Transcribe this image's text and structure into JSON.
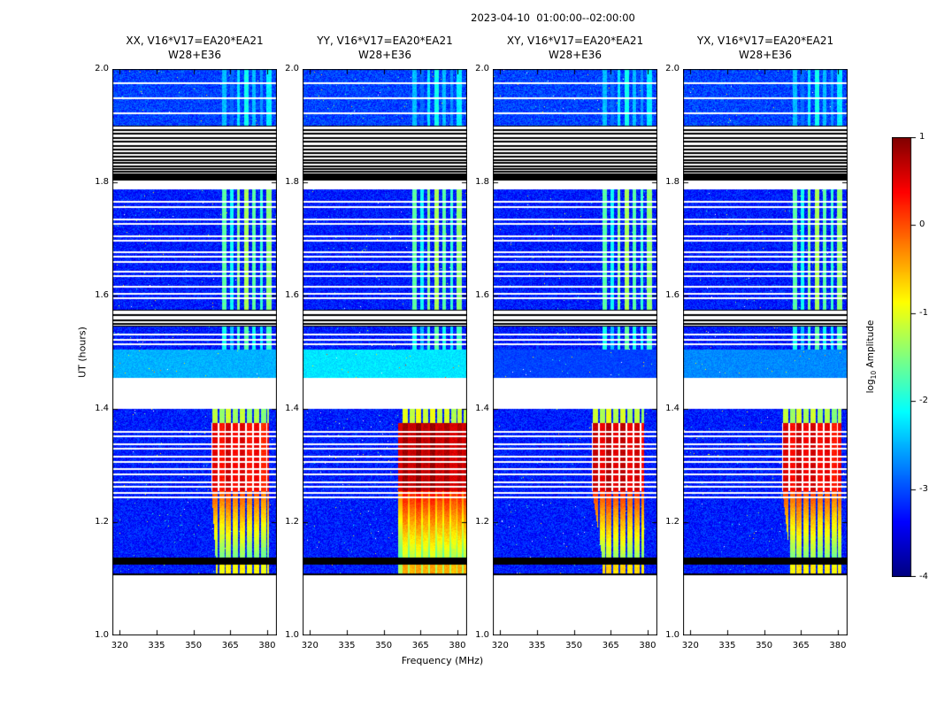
{
  "chart_data": {
    "type": "heatmap",
    "title": "2023-04-10  01:00:00--02:00:00",
    "xlabel": "Frequency (MHz)",
    "ylabel": "UT (hours)",
    "x_range": [
      317,
      384
    ],
    "x_ticks": [
      "320",
      "335",
      "350",
      "365",
      "380"
    ],
    "y_range": [
      1.0,
      2.0
    ],
    "y_ticks": [
      "2.0",
      "1.8",
      "1.6",
      "1.4",
      "1.2",
      "1.0"
    ],
    "colorbar": {
      "label": "log10 Amplitude",
      "label_parts": [
        "log",
        "10",
        " Amplitude"
      ],
      "vmin": -4,
      "vmax": 1,
      "ticks": [
        "1",
        "0",
        "-1",
        "-2",
        "-3",
        "-4"
      ]
    },
    "panels": [
      {
        "id": "XX",
        "title_line1": "XX, V16*V17=EA20*EA21",
        "title_line2": "W28+E36",
        "red_f0": 357.5,
        "red_f1": 380.8,
        "boost": 0.0,
        "fade_gap": "bg",
        "cyan_base": -2.5,
        "slant": 1.5,
        "seed": 1
      },
      {
        "id": "YY",
        "title_line1": "YY, V16*V17=EA20*EA21",
        "title_line2": "W28+E36",
        "red_f0": 356.0,
        "red_f1": 383.6,
        "boost": 0.35,
        "fade_gap": "dim",
        "cyan_base": -2.25,
        "slant": 0,
        "seed": 2
      },
      {
        "id": "XY",
        "title_line1": "XY, V16*V17=EA20*EA21",
        "title_line2": "W28+E36",
        "red_f0": 357.5,
        "red_f1": 378.6,
        "boost": 0.15,
        "fade_gap": "bg",
        "cyan_base": -3.05,
        "slant": 4,
        "seed": 3
      },
      {
        "id": "YX",
        "title_line1": "YX, V16*V17=EA20*EA21",
        "title_line2": "W28+E36",
        "red_f0": 357.5,
        "red_f1": 381.5,
        "boost": 0.05,
        "fade_gap": "bg",
        "cyan_base": -2.7,
        "slant": 3,
        "seed": 4
      }
    ],
    "upper_stripes": [
      [
        361.5,
        363.5,
        -1.7
      ],
      [
        365.0,
        366.2,
        -2.1
      ],
      [
        367.8,
        369.0,
        -1.5
      ],
      [
        370.8,
        372.4,
        -1.3
      ],
      [
        374.0,
        375.2,
        -1.7
      ],
      [
        377.3,
        378.4,
        -1.9
      ],
      [
        379.8,
        381.8,
        -1.45
      ]
    ],
    "columns": [
      [
        357.8,
        360.0,
        0.15
      ],
      [
        360.6,
        362.7,
        -0.05
      ],
      [
        363.2,
        365.4,
        0.25
      ],
      [
        366.0,
        368.1,
        0.0
      ],
      [
        368.9,
        371.1,
        0.2
      ],
      [
        371.8,
        373.9,
        -0.05
      ],
      [
        374.7,
        376.9,
        0.1
      ],
      [
        377.5,
        379.6,
        -0.15
      ],
      [
        380.2,
        381.9,
        0.05
      ],
      [
        382.4,
        383.6,
        -0.05
      ]
    ],
    "bands": [
      {
        "t0": 1.9,
        "t1": 2.0,
        "type": "noise",
        "base": -3.05,
        "sigma": 0.3,
        "stripes": "upper",
        "stripe_offset": -0.75,
        "white_lines": [
          1.922,
          1.948,
          1.975
        ]
      },
      {
        "t0": 1.803,
        "t1": 1.9,
        "type": "blacklines",
        "count": 19
      },
      {
        "t0": 1.787,
        "t1": 1.803,
        "type": "blank"
      },
      {
        "t0": 1.575,
        "t1": 1.787,
        "type": "noise",
        "base": -3.25,
        "sigma": 0.3,
        "stripes": "upper",
        "stripe_offset": 0,
        "white_lines": [
          1.595,
          1.603,
          1.615,
          1.634,
          1.642,
          1.66,
          1.668,
          1.676,
          1.697,
          1.705,
          1.727,
          1.735,
          1.757,
          1.765
        ]
      },
      {
        "t0": 1.545,
        "t1": 1.575,
        "type": "blacklines",
        "count": 5
      },
      {
        "t0": 1.505,
        "t1": 1.545,
        "type": "noise",
        "base": -3.25,
        "sigma": 0.3,
        "stripes": "upper",
        "stripe_offset": -0.35,
        "white_lines": [
          1.514,
          1.522,
          1.532
        ]
      },
      {
        "t0": 1.455,
        "t1": 1.505,
        "type": "noise",
        "base": "cyan",
        "sigma": 0.14
      },
      {
        "t0": 1.4,
        "t1": 1.455,
        "type": "blank"
      },
      {
        "t0": 1.375,
        "t1": 1.4,
        "type": "noise",
        "base": -3.25,
        "sigma": 0.3,
        "stripes": "cols_top"
      },
      {
        "t0": 1.255,
        "t1": 1.375,
        "type": "noise",
        "base": -3.25,
        "sigma": 0.3,
        "stripes": "red",
        "white_lines": [
          1.263,
          1.271,
          1.285,
          1.293,
          1.307,
          1.315,
          1.329,
          1.337,
          1.351,
          1.359
        ]
      },
      {
        "t0": 1.1375,
        "t1": 1.255,
        "type": "noise",
        "base": -3.25,
        "sigma": 0.3,
        "stripes": "fade",
        "white_lines": [
          1.2435,
          1.251
        ]
      },
      {
        "t0": 1.125,
        "t1": 1.1375,
        "type": "solid"
      },
      {
        "t0": 1.107,
        "t1": 1.125,
        "type": "noise",
        "base": -3.25,
        "sigma": 0.3,
        "stripes": "fade_end",
        "bottom_black": true
      },
      {
        "t0": 1.0,
        "t1": 1.107,
        "type": "blank"
      }
    ]
  }
}
